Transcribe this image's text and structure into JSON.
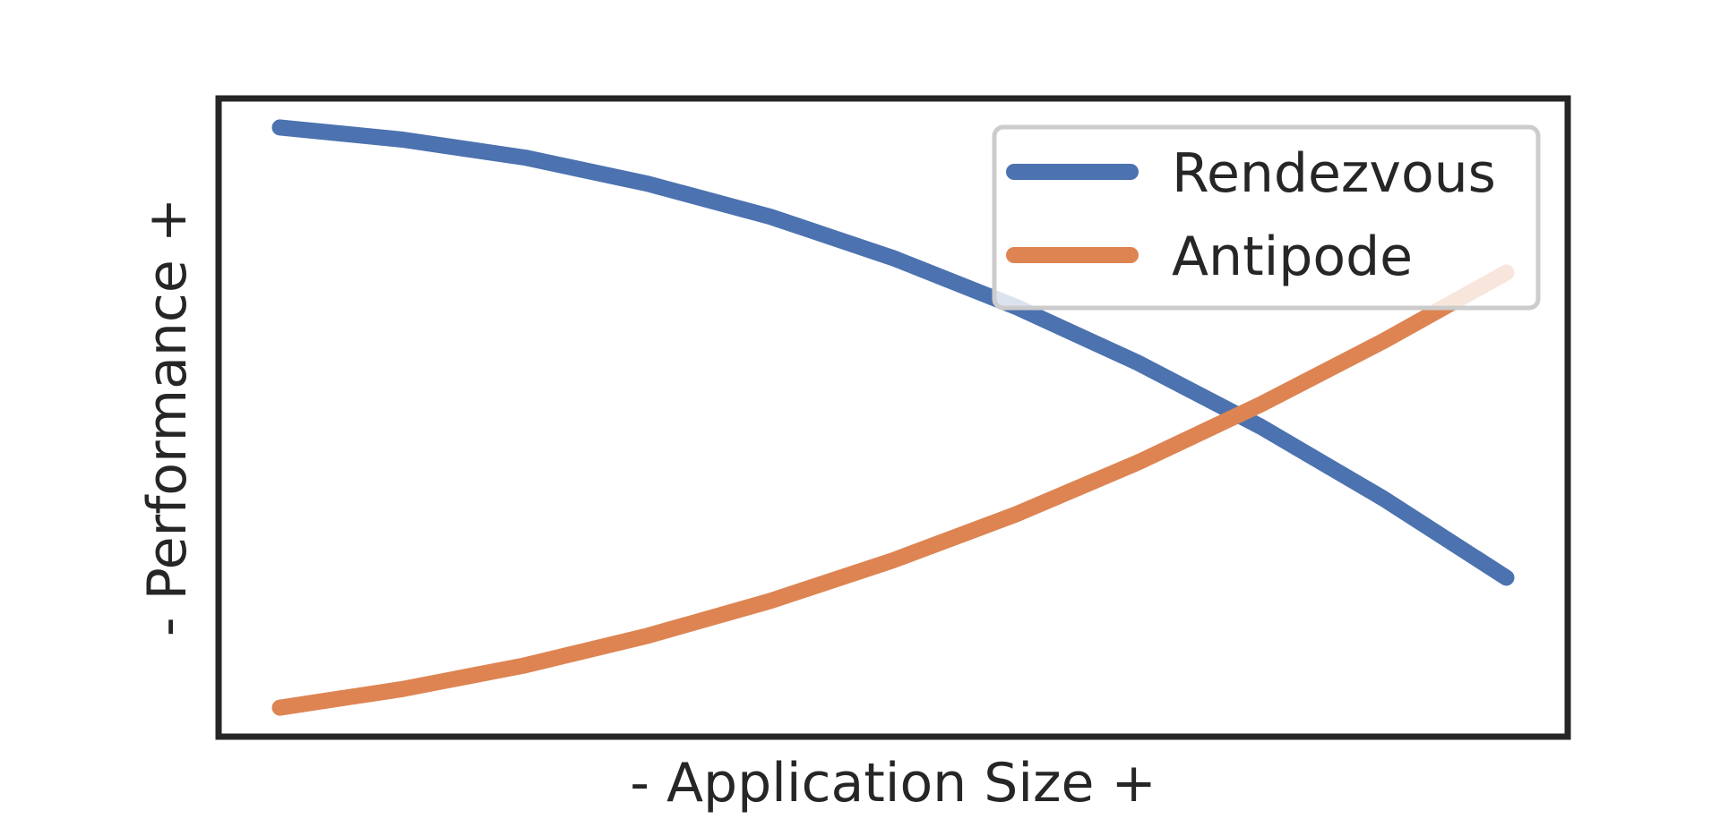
{
  "chart_data": {
    "type": "line",
    "title": "",
    "xlabel": "- Application Size +",
    "ylabel": "- Performance +",
    "xlim": [
      -0.05,
      1.05
    ],
    "ylim": [
      -0.05,
      1.05
    ],
    "grid": false,
    "legend": "top-right",
    "series": [
      {
        "name": "Rendezvous",
        "color": "#4c72b0",
        "x": [
          0,
          0.1,
          0.2,
          0.3,
          0.4,
          0.5,
          0.6,
          0.7,
          0.8,
          0.9,
          1.0
        ],
        "y": [
          1.0,
          0.979,
          0.948,
          0.903,
          0.846,
          0.775,
          0.691,
          0.594,
          0.484,
          0.36,
          0.224
        ]
      },
      {
        "name": "Antipode",
        "color": "#dd8452",
        "x": [
          0,
          0.1,
          0.2,
          0.3,
          0.4,
          0.5,
          0.6,
          0.7,
          0.8,
          0.9,
          1.0
        ],
        "y": [
          0.0,
          0.032,
          0.073,
          0.124,
          0.184,
          0.254,
          0.333,
          0.423,
          0.523,
          0.632,
          0.75
        ]
      }
    ]
  }
}
